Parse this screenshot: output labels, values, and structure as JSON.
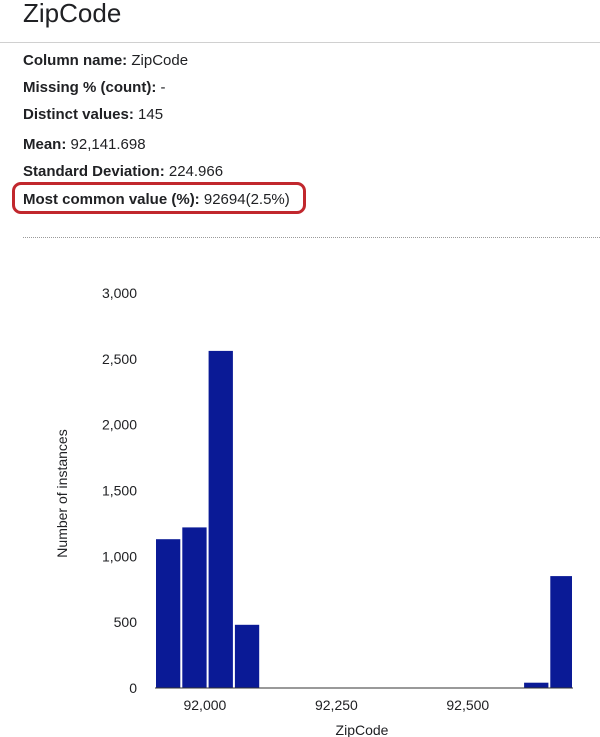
{
  "title": "ZipCode",
  "stats": {
    "column_name": {
      "label": "Column name:",
      "value": "ZipCode"
    },
    "missing": {
      "label": "Missing % (count):",
      "value": "-"
    },
    "distinct": {
      "label": "Distinct values:",
      "value": "145"
    },
    "mean": {
      "label": "Mean:",
      "value": "92,141.698"
    },
    "std": {
      "label": "Standard Deviation:",
      "value": "224.966"
    },
    "most_common": {
      "label": "Most common value (%):",
      "value": "92694(2.5%)"
    }
  },
  "highlight_color": "#c1272d",
  "chart_data": {
    "type": "bar",
    "title": "",
    "xlabel": "ZipCode",
    "ylabel": "Number of instances",
    "bar_color": "#0a1a96",
    "ylim": [
      0,
      3000
    ],
    "xlim": [
      91905,
      92700
    ],
    "x_ticks": [
      {
        "value": 92000,
        "label": "92,000"
      },
      {
        "value": 92250,
        "label": "92,250"
      },
      {
        "value": 92500,
        "label": "92,500"
      }
    ],
    "y_ticks": [
      {
        "value": 0,
        "label": "0"
      },
      {
        "value": 500,
        "label": "500"
      },
      {
        "value": 1000,
        "label": "1,000"
      },
      {
        "value": 1500,
        "label": "1,500"
      },
      {
        "value": 2000,
        "label": "2,000"
      },
      {
        "value": 2500,
        "label": "2,500"
      },
      {
        "value": 3000,
        "label": "3,000"
      }
    ],
    "bins": [
      {
        "start": 91905,
        "end": 91955,
        "count": 1130
      },
      {
        "start": 91955,
        "end": 92005,
        "count": 1220
      },
      {
        "start": 92005,
        "end": 92055,
        "count": 2560
      },
      {
        "start": 92055,
        "end": 92105,
        "count": 480
      },
      {
        "start": 92105,
        "end": 92155,
        "count": 0
      },
      {
        "start": 92155,
        "end": 92205,
        "count": 0
      },
      {
        "start": 92205,
        "end": 92255,
        "count": 0
      },
      {
        "start": 92255,
        "end": 92305,
        "count": 0
      },
      {
        "start": 92305,
        "end": 92355,
        "count": 0
      },
      {
        "start": 92355,
        "end": 92405,
        "count": 0
      },
      {
        "start": 92405,
        "end": 92455,
        "count": 0
      },
      {
        "start": 92455,
        "end": 92505,
        "count": 0
      },
      {
        "start": 92505,
        "end": 92555,
        "count": 0
      },
      {
        "start": 92555,
        "end": 92605,
        "count": 0
      },
      {
        "start": 92605,
        "end": 92655,
        "count": 40
      },
      {
        "start": 92655,
        "end": 92700,
        "count": 850
      }
    ]
  }
}
